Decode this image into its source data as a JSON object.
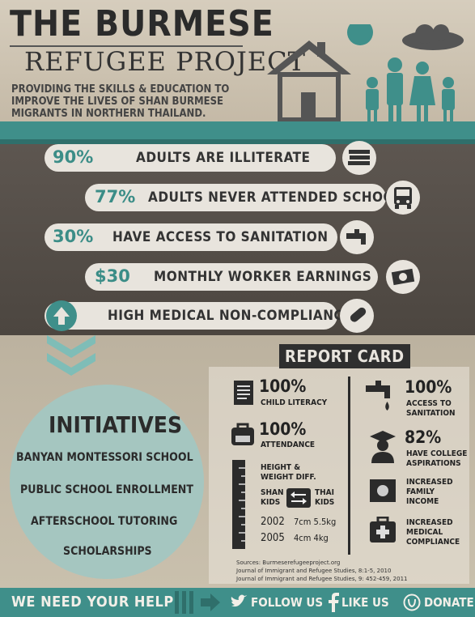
{
  "header": {
    "title": "THE BURMESE",
    "subtitle": "REFUGEE PROJECT",
    "tagline": "PROVIDING THE SKILLS & EDUCATION TO IMPROVE THE LIVES OF SHAN BURMESE MIGRANTS IN NORTHERN THAILAND."
  },
  "stats": [
    {
      "value": "90%",
      "label": "ADULTS ARE ILLITERATE",
      "icon": "books-icon"
    },
    {
      "value": "77%",
      "label": "ADULTS NEVER ATTENDED SCHOOL",
      "icon": "school-bus-icon"
    },
    {
      "value": "30%",
      "label": "HAVE ACCESS TO SANITATION",
      "icon": "faucet-icon"
    },
    {
      "value": "$30",
      "label": "MONTHLY WORKER EARNINGS",
      "icon": "money-icon"
    },
    {
      "value": "",
      "label": "HIGH MEDICAL NON-COMPLIANCE",
      "icon": "pill-icon"
    }
  ],
  "initiatives": {
    "title": "INITIATIVES",
    "items": [
      "BANYAN MONTESSORI SCHOOL",
      "PUBLIC SCHOOL ENROLLMENT",
      "AFTERSCHOOL TUTORING",
      "SCHOLARSHIPS"
    ]
  },
  "report_card": {
    "title": "REPORT CARD",
    "left": [
      {
        "value": "100%",
        "label": "CHILD LITERACY"
      },
      {
        "value": "100%",
        "label": "ATTENDANCE"
      }
    ],
    "height_weight": {
      "title_line1": "HEIGHT &",
      "title_line2": "WEIGHT DIFF.",
      "shan": "SHAN",
      "shan2": "KIDS",
      "thai": "THAI",
      "thai2": "KIDS",
      "row1_year": "2002",
      "row1_values": "7cm  5.5kg",
      "row2_year": "2005",
      "row2_values": "4cm  4kg"
    },
    "right": [
      {
        "value": "100%",
        "label1": "ACCESS TO",
        "label2": "SANITATION"
      },
      {
        "value": "82%",
        "label1": "HAVE COLLEGE",
        "label2": "ASPIRATIONS"
      },
      {
        "value": "",
        "label1": "INCREASED",
        "label2": "FAMILY",
        "label3": "INCOME"
      },
      {
        "value": "",
        "label1": "INCREASED",
        "label2": "MEDICAL",
        "label3": "COMPLIANCE"
      }
    ],
    "sources": [
      "Sources: Burmeserefugeeproject.org",
      "Journal of Immigrant and Refugee Studies, 8:1-5, 2010",
      "Journal of Immigrant and Refugee Studies, 9: 452-459, 2011"
    ]
  },
  "footer": {
    "help": "WE NEED YOUR HELP",
    "follow": "FOLLOW US",
    "like": "LIKE US",
    "donate": "DONATE"
  },
  "colors": {
    "teal": "#3f8f8a",
    "dark": "#4c4640",
    "cream": "#e8e4dd"
  }
}
